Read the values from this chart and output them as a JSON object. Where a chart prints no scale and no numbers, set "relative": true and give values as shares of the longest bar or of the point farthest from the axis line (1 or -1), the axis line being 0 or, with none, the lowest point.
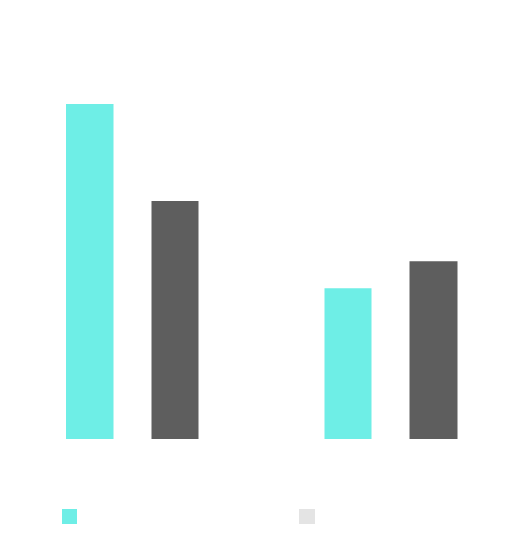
{
  "chart_data": {
    "type": "bar",
    "relative": true,
    "categories": [
      null,
      null
    ],
    "series": [
      {
        "color": "#6eeee6",
        "values": [
          1,
          0.45
        ]
      },
      {
        "color": "#5e5e5e",
        "values": [
          0.71,
          0.53
        ]
      }
    ]
  }
}
